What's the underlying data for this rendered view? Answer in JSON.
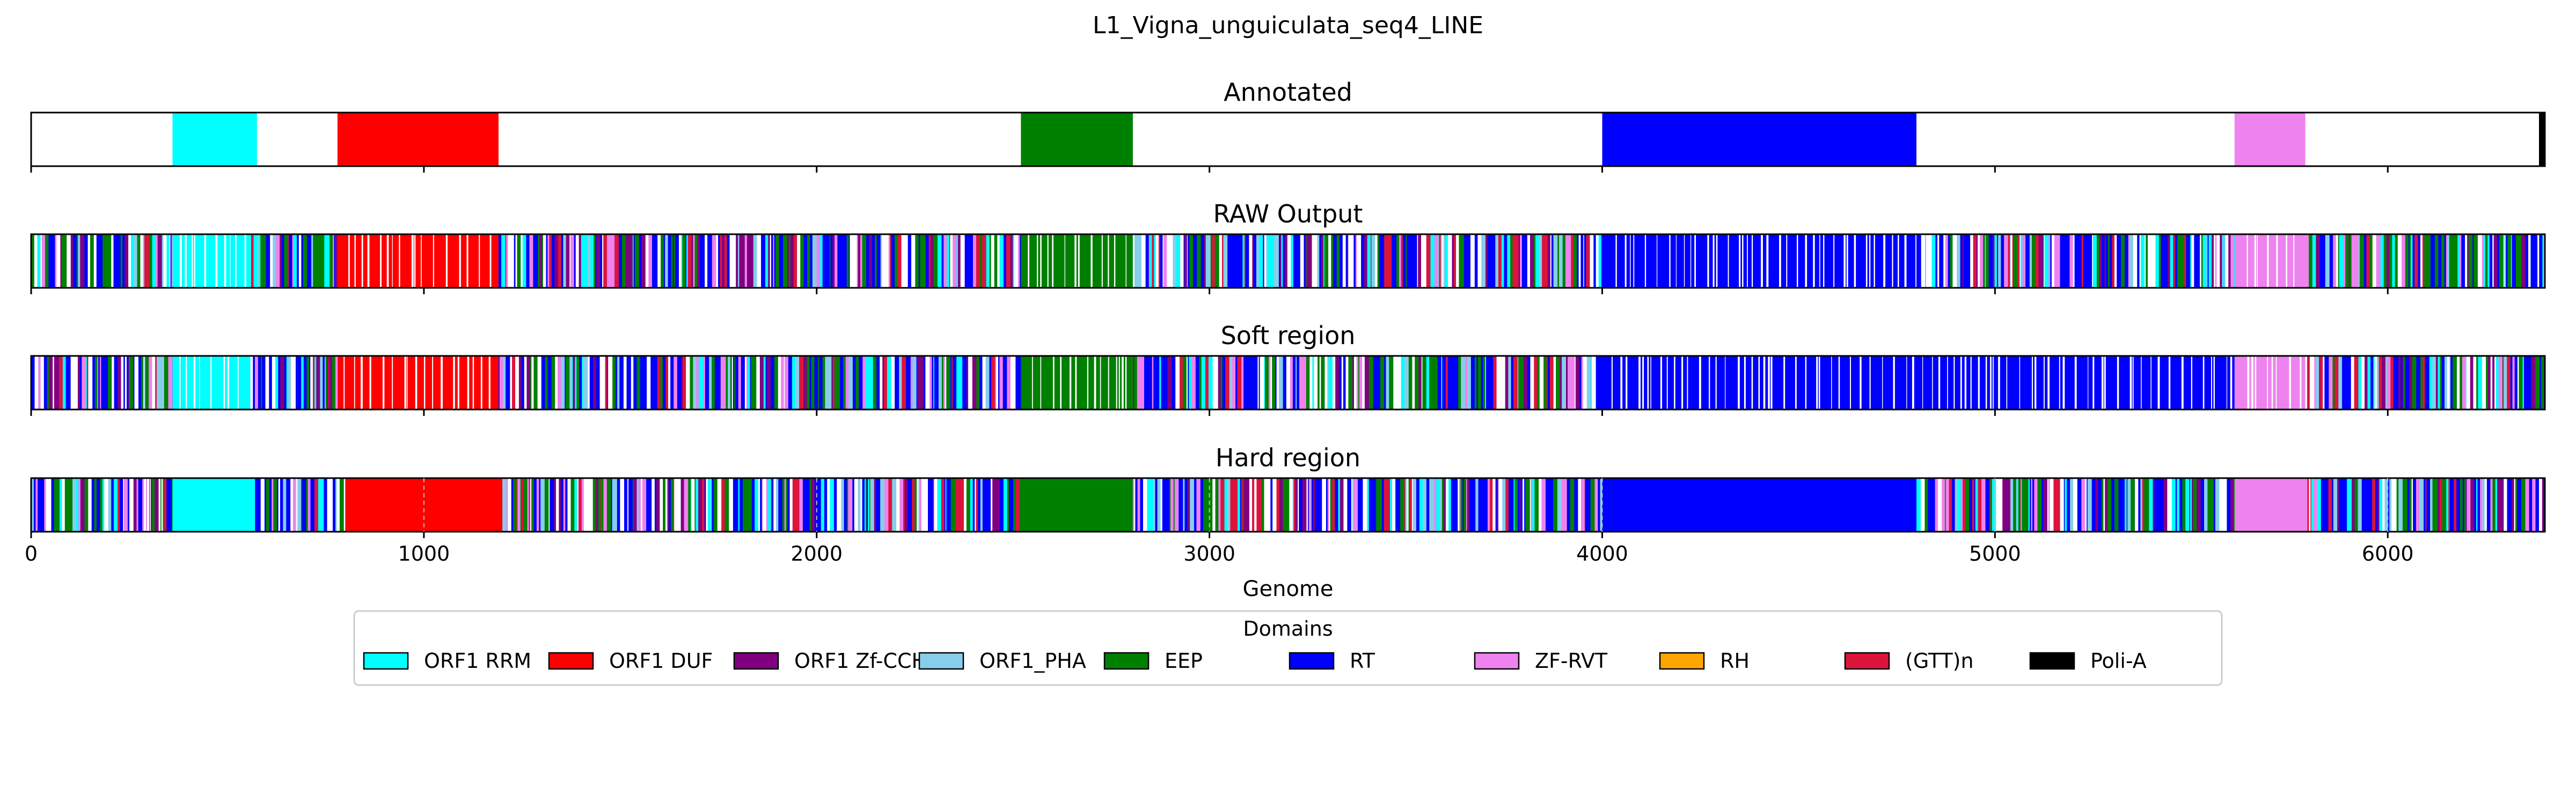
{
  "chart_data": {
    "type": "bar",
    "title": "L1_Vigna_unguiculata_seq4_LINE",
    "xlabel": "Genome",
    "xlim": [
      0,
      6400
    ],
    "xticks": [
      "0",
      "1000",
      "2000",
      "3000",
      "4000",
      "5000",
      "6000"
    ],
    "panels": [
      {
        "title": "Annotated",
        "segments": [
          {
            "start": 360,
            "end": 575,
            "domain": "ORF1 RRM"
          },
          {
            "start": 780,
            "end": 1190,
            "domain": "ORF1 DUF"
          },
          {
            "start": 2520,
            "end": 2805,
            "domain": "EEP"
          },
          {
            "start": 4000,
            "end": 4800,
            "domain": "RT"
          },
          {
            "start": 5610,
            "end": 5790,
            "domain": "ZF-RVT"
          },
          {
            "start": 6385,
            "end": 6400,
            "domain": "Poli-A"
          }
        ]
      },
      {
        "title": "RAW Output",
        "regions": [
          {
            "start": 0,
            "end": 360,
            "domain": "mixed"
          },
          {
            "start": 360,
            "end": 560,
            "domain": "ORF1 RRM"
          },
          {
            "start": 560,
            "end": 780,
            "domain": "mixed"
          },
          {
            "start": 780,
            "end": 1190,
            "domain": "ORF1 DUF"
          },
          {
            "start": 1190,
            "end": 2520,
            "domain": "mixed"
          },
          {
            "start": 2520,
            "end": 2805,
            "domain": "EEP"
          },
          {
            "start": 2805,
            "end": 4000,
            "domain": "mixed"
          },
          {
            "start": 4000,
            "end": 4800,
            "domain": "RT"
          },
          {
            "start": 4800,
            "end": 5610,
            "domain": "mixed"
          },
          {
            "start": 5610,
            "end": 5790,
            "domain": "ZF-RVT"
          },
          {
            "start": 5790,
            "end": 6400,
            "domain": "mixed"
          }
        ]
      },
      {
        "title": "Soft region",
        "regions": [
          {
            "start": 0,
            "end": 360,
            "domain": "mixed"
          },
          {
            "start": 360,
            "end": 560,
            "domain": "ORF1 RRM"
          },
          {
            "start": 560,
            "end": 780,
            "domain": "mixed"
          },
          {
            "start": 780,
            "end": 1190,
            "domain": "ORF1 DUF"
          },
          {
            "start": 1190,
            "end": 2520,
            "domain": "mixed"
          },
          {
            "start": 2520,
            "end": 2805,
            "domain": "EEP"
          },
          {
            "start": 2805,
            "end": 4000,
            "domain": "mixed"
          },
          {
            "start": 4000,
            "end": 5610,
            "domain": "RT"
          },
          {
            "start": 5610,
            "end": 5790,
            "domain": "ZF-RVT"
          },
          {
            "start": 5790,
            "end": 6400,
            "domain": "mixed"
          }
        ]
      },
      {
        "title": "Hard region",
        "regions": [
          {
            "start": 0,
            "end": 360,
            "domain": "mixed"
          },
          {
            "start": 360,
            "end": 570,
            "domain": "ORF1 RRM"
          },
          {
            "start": 570,
            "end": 800,
            "domain": "mixed"
          },
          {
            "start": 800,
            "end": 1200,
            "domain": "ORF1 DUF"
          },
          {
            "start": 1200,
            "end": 2520,
            "domain": "mixed"
          },
          {
            "start": 2520,
            "end": 2805,
            "domain": "EEP"
          },
          {
            "start": 2805,
            "end": 4000,
            "domain": "mixed"
          },
          {
            "start": 4000,
            "end": 4800,
            "domain": "RT"
          },
          {
            "start": 4800,
            "end": 5610,
            "domain": "mixed"
          },
          {
            "start": 5610,
            "end": 5795,
            "domain": "ZF-RVT"
          },
          {
            "start": 5795,
            "end": 6400,
            "domain": "mixed"
          }
        ]
      }
    ],
    "legend": {
      "title": "Domains",
      "position": "bottom-center",
      "items": [
        {
          "label": "ORF1 RRM",
          "color": "#00ffff"
        },
        {
          "label": "ORF1 DUF",
          "color": "#ff0000"
        },
        {
          "label": "ORF1 Zf-CCHC",
          "color": "#800080"
        },
        {
          "label": "ORF1_PHA",
          "color": "#87ceeb"
        },
        {
          "label": "EEP",
          "color": "#008000"
        },
        {
          "label": "RT",
          "color": "#0000ff"
        },
        {
          "label": "ZF-RVT",
          "color": "#ee82ee"
        },
        {
          "label": "RH",
          "color": "#ffa500"
        },
        {
          "label": "(GTT)n",
          "color": "#dc143c"
        },
        {
          "label": "Poli-A",
          "color": "#000000"
        }
      ]
    },
    "grid": false
  }
}
